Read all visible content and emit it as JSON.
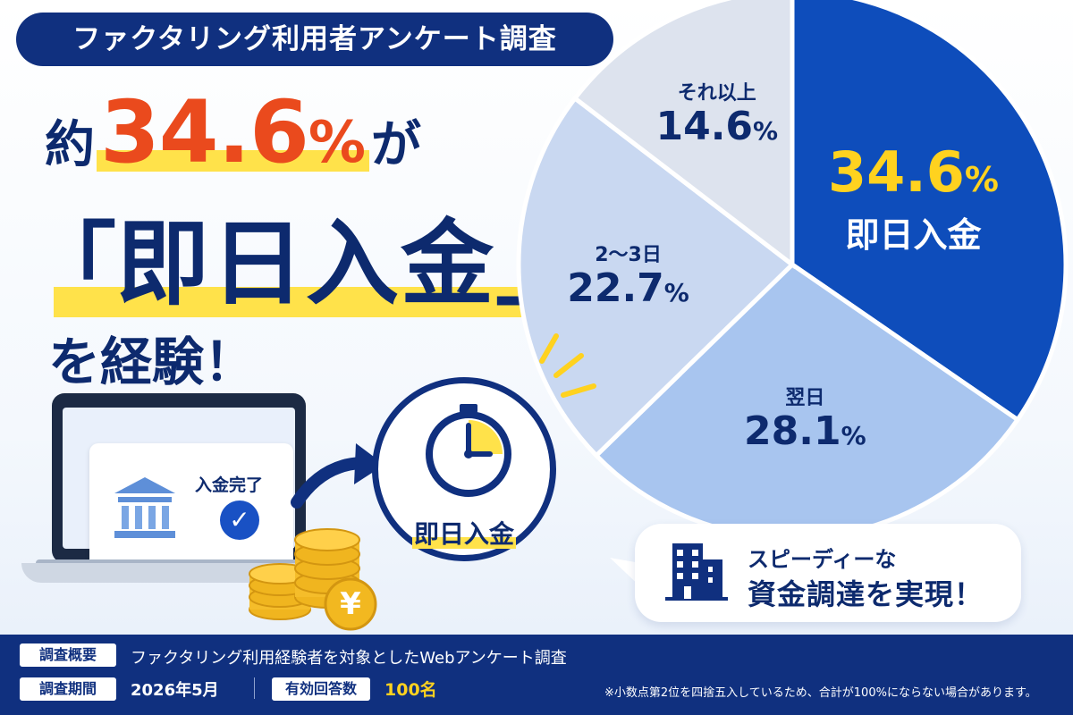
{
  "banner": "ファクタリング利用者アンケート調査",
  "headline": {
    "pre": "約",
    "pct_number": "34.6",
    "pct_unit": "%",
    "post": "が",
    "bracket_open": "「",
    "big": "即日入金",
    "bracket_close": "」",
    "line3": "を経験！"
  },
  "chart_data": {
    "type": "pie",
    "slices": [
      {
        "label": "即日入金",
        "value": 34.6,
        "color": "#0e4dbb"
      },
      {
        "label": "翌日",
        "value": 28.1,
        "color": "#a8c5ef"
      },
      {
        "label": "2〜3日",
        "value": 22.7,
        "color": "#c9d8f1"
      },
      {
        "label": "それ以上",
        "value": 14.6,
        "color": "#dde3ee"
      }
    ],
    "value_texts": [
      "34.6",
      "28.1",
      "22.7",
      "14.6"
    ],
    "unit": "%",
    "start": "12 o'clock",
    "direction": "clockwise"
  },
  "illustration": {
    "deposit_label": "入金完了",
    "check": "✓",
    "yen": "¥",
    "clock_label": "即日入金",
    "icons": [
      "bank-icon",
      "check-icon",
      "coin-icon",
      "arrow-icon",
      "stopwatch-icon",
      "building-icon"
    ]
  },
  "bubble": {
    "line1": "スピーディーな",
    "line2": "資金調達を実現！"
  },
  "footer": {
    "overview_tag": "調査概要",
    "overview_text": "ファクタリング利用経験者を対象としたWebアンケート調査",
    "period_tag": "調査期間",
    "period_text": "2026年5月",
    "responses_tag": "有効回答数",
    "responses_text": "100名",
    "note": "※小数点第2位を四捨五入しているため、合計が100%にならない場合があります。"
  },
  "colors": {
    "navy": "#10307f",
    "accent_orange": "#ea4a1d",
    "highlight_yellow": "#ffe24a",
    "gold": "#ffd21f"
  }
}
